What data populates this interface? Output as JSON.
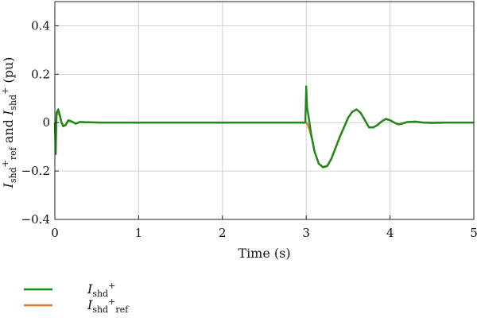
{
  "chart_data": {
    "type": "line",
    "title": "",
    "xlabel": "Time (s)",
    "ylabel": {
      "main": "I",
      "sub1": "shd",
      "sup1": "+",
      "sub1b": "ref",
      "mid": " and ",
      "main2": "I",
      "sub2": "shd",
      "sup2": "+",
      "unit": " (pu)"
    },
    "xlim": [
      0,
      5
    ],
    "ylim": [
      -0.4,
      0.5
    ],
    "xticks": [
      0,
      1,
      2,
      3,
      4,
      5
    ],
    "xtick_labels": [
      "0",
      "1",
      "2",
      "3",
      "4",
      "5"
    ],
    "yticks": [
      -0.4,
      -0.2,
      0,
      0.2,
      0.4
    ],
    "ytick_labels": [
      "−0.4",
      "−0.2",
      "0",
      "0.2",
      "0.4"
    ],
    "grid": true,
    "legend_position": "bottom-left, below plot",
    "series": [
      {
        "name": "I_shd^+",
        "legend": {
          "main": "I",
          "sub": "shd",
          "sup": "+",
          "sub2": ""
        },
        "color": "#1b8a1b",
        "x": [
          0,
          0.01,
          0.02,
          0.04,
          0.06,
          0.08,
          0.1,
          0.13,
          0.16,
          0.2,
          0.25,
          0.3,
          0.35,
          0.45,
          0.55,
          0.7,
          1.0,
          2.0,
          2.99,
          3.0,
          3.01,
          3.03,
          3.06,
          3.1,
          3.15,
          3.2,
          3.25,
          3.3,
          3.4,
          3.5,
          3.55,
          3.6,
          3.65,
          3.7,
          3.75,
          3.8,
          3.85,
          3.9,
          3.95,
          4.0,
          4.05,
          4.1,
          4.15,
          4.2,
          4.3,
          4.4,
          4.5,
          4.7,
          5.0
        ],
        "y": [
          0,
          -0.13,
          0.04,
          0.055,
          0.03,
          0.0,
          -0.015,
          -0.01,
          0.01,
          0.005,
          -0.005,
          0.003,
          0.002,
          0.001,
          0.0,
          0.0,
          0.0,
          0.0,
          0.0,
          0.15,
          0.06,
          0.02,
          -0.05,
          -0.12,
          -0.17,
          -0.185,
          -0.18,
          -0.15,
          -0.06,
          0.02,
          0.045,
          0.055,
          0.04,
          0.01,
          -0.02,
          -0.02,
          -0.01,
          0.005,
          0.015,
          0.01,
          0.0,
          -0.007,
          -0.004,
          0.002,
          0.004,
          0.0,
          -0.001,
          0.0,
          0.0
        ]
      },
      {
        "name": "I_shd,ref^+",
        "legend": {
          "main": "I",
          "sub": "shd",
          "sup": "+",
          "sub2": "ref"
        },
        "color": "#e07b28",
        "x": [
          0,
          0.01,
          0.02,
          0.04,
          0.06,
          0.08,
          0.1,
          0.13,
          0.16,
          0.2,
          0.25,
          0.3,
          0.35,
          0.45,
          0.55,
          0.7,
          1.0,
          2.0,
          2.99,
          3.0,
          3.02,
          3.04,
          3.07,
          3.1,
          3.15,
          3.2,
          3.25,
          3.3,
          3.4,
          3.5,
          3.55,
          3.6,
          3.65,
          3.7,
          3.75,
          3.8,
          3.85,
          3.9,
          3.95,
          4.0,
          4.05,
          4.1,
          4.15,
          4.2,
          4.3,
          4.4,
          4.5,
          4.7,
          5.0
        ],
        "y": [
          0,
          -0.08,
          0.03,
          0.045,
          0.025,
          0.0,
          -0.012,
          -0.008,
          0.008,
          0.004,
          -0.004,
          0.002,
          0.001,
          0.001,
          0.0,
          0.0,
          0.0,
          0.0,
          0.0,
          0.0,
          -0.01,
          -0.03,
          -0.07,
          -0.12,
          -0.17,
          -0.183,
          -0.178,
          -0.148,
          -0.058,
          0.02,
          0.044,
          0.054,
          0.04,
          0.01,
          -0.02,
          -0.02,
          -0.01,
          0.005,
          0.015,
          0.01,
          0.0,
          -0.007,
          -0.004,
          0.002,
          0.004,
          0.0,
          -0.001,
          0.0,
          0.0
        ]
      }
    ]
  }
}
